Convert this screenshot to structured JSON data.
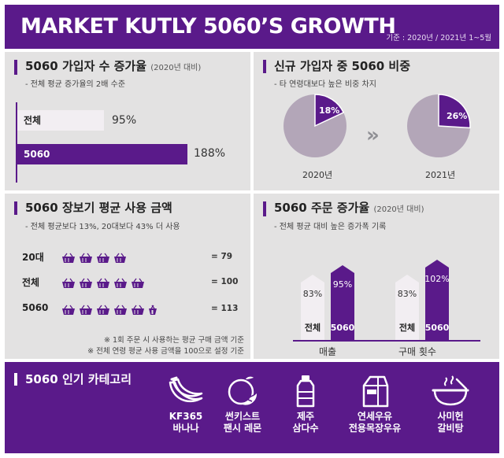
{
  "header": {
    "title": "MARKET KUTLY 5060’S GROWTH",
    "basis": "기준 : 2020년 / 2021년 1~5월"
  },
  "signup_growth": {
    "title": "5060 가입자 수 증가율",
    "title_note": "(2020년 대비)",
    "subtitle": "- 전체 평균 증가율의 2배 수준",
    "chart_data": {
      "type": "bar",
      "categories": [
        "전체",
        "5060"
      ],
      "values": [
        95,
        188
      ],
      "value_labels": [
        "95%",
        "188%"
      ]
    }
  },
  "new_member_share": {
    "title": "신규 가입자 중 5060 비중",
    "subtitle": "- 타 연령대보다 높은 비중 차지",
    "chart_data": [
      {
        "type": "pie",
        "label": "2020년",
        "value": 18,
        "value_label": "18%"
      },
      {
        "type": "pie",
        "label": "2021년",
        "value": 26,
        "value_label": "26%"
      }
    ],
    "arrow": "»"
  },
  "avg_spend": {
    "title": "5060 장보기 평균 사용 금액",
    "subtitle": "- 전체 평균보다 13%, 20대보다 43% 더 사용",
    "chart_data": {
      "type": "table",
      "rows": [
        {
          "label": "20대",
          "value": 79,
          "value_label": "= 79"
        },
        {
          "label": "전체",
          "value": 100,
          "value_label": "= 100"
        },
        {
          "label": "5060",
          "value": 113,
          "value_label": "= 113"
        }
      ]
    },
    "icon": "basket-icon",
    "notes": [
      "※ 1회 주문 시 사용하는 평균 구매 금액 기준",
      "※ 전체 연령 평균 사용 금액을 100으로 설정 기준"
    ]
  },
  "order_growth": {
    "title": "5060 주문 증가율",
    "title_note": "(2020년 대비)",
    "subtitle": "- 전체 평균 대비 높은 증가폭 기록",
    "chart_data": {
      "type": "bar",
      "categories": [
        "매출",
        "구매 횟수"
      ],
      "series": [
        {
          "name": "전체",
          "values": [
            83,
            83
          ],
          "value_labels": [
            "83%",
            "83%"
          ]
        },
        {
          "name": "5060",
          "values": [
            95,
            102
          ],
          "value_labels": [
            "95%",
            "102%"
          ]
        }
      ]
    }
  },
  "popular": {
    "title": "5060 인기 카테고리",
    "items": [
      {
        "line1": "KF365",
        "line2": "바나나",
        "icon": "banana-icon"
      },
      {
        "line1": "썬키스트",
        "line2": "팬시 레몬",
        "icon": "lemon-icon"
      },
      {
        "line1": "제주",
        "line2": "삼다수",
        "icon": "water-bottle-icon"
      },
      {
        "line1": "연세우유",
        "line2": "전용목장우유",
        "icon": "milk-carton-icon"
      },
      {
        "line1": "사미헌",
        "line2": "갈비탕",
        "icon": "soup-bowl-icon"
      }
    ]
  },
  "colors": {
    "purple": "#5a1a8a",
    "light": "#f2eef2",
    "panel": "#e3e2e2",
    "pie_base": "#b3a6b8"
  }
}
